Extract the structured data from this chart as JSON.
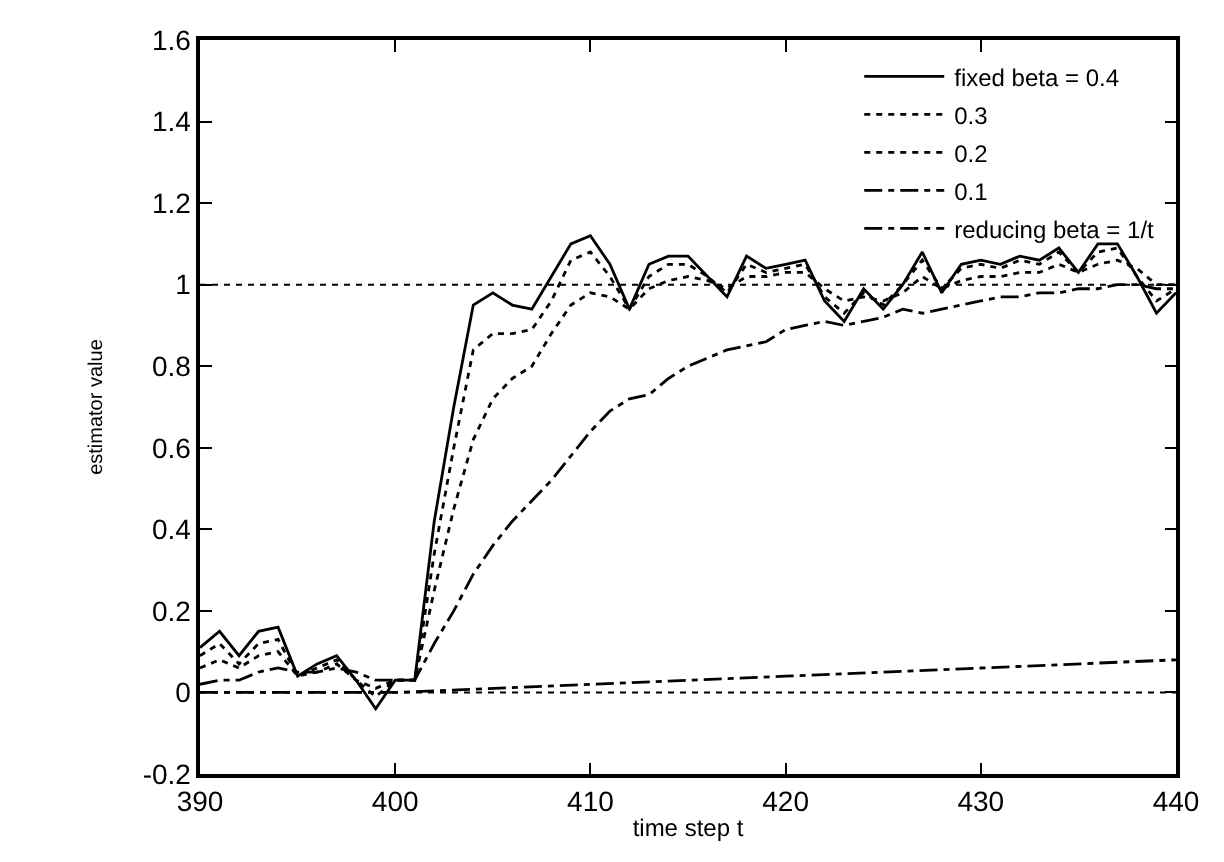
{
  "chart_data": {
    "type": "line",
    "xlabel": "time step t",
    "ylabel": "estimator value",
    "x": [
      390,
      391,
      392,
      393,
      394,
      395,
      396,
      397,
      398,
      399,
      400,
      401,
      402,
      403,
      404,
      405,
      406,
      407,
      408,
      409,
      410,
      411,
      412,
      413,
      414,
      415,
      416,
      417,
      418,
      419,
      420,
      421,
      422,
      423,
      424,
      425,
      426,
      427,
      428,
      429,
      430,
      431,
      432,
      433,
      434,
      435,
      436,
      437,
      438,
      439,
      440
    ],
    "series": [
      {
        "name": "fixed beta = 0.4",
        "color": "#000000",
        "line_style": "solid",
        "values": [
          0.11,
          0.15,
          0.09,
          0.15,
          0.16,
          0.04,
          0.07,
          0.09,
          0.03,
          -0.04,
          0.03,
          0.03,
          0.42,
          0.7,
          0.95,
          0.98,
          0.95,
          0.94,
          1.02,
          1.1,
          1.12,
          1.05,
          0.94,
          1.05,
          1.07,
          1.07,
          1.02,
          0.97,
          1.07,
          1.04,
          1.05,
          1.06,
          0.96,
          0.91,
          0.99,
          0.94,
          1.0,
          1.08,
          0.98,
          1.05,
          1.06,
          1.05,
          1.07,
          1.06,
          1.09,
          1.03,
          1.1,
          1.1,
          1.02,
          0.93,
          0.98
        ]
      },
      {
        "name": "0.3",
        "color": "#000000",
        "line_style": "dotted",
        "values": [
          0.09,
          0.12,
          0.07,
          0.12,
          0.13,
          0.04,
          0.06,
          0.08,
          0.03,
          -0.01,
          0.03,
          0.03,
          0.34,
          0.6,
          0.84,
          0.88,
          0.88,
          0.89,
          0.96,
          1.06,
          1.08,
          1.02,
          0.94,
          1.02,
          1.05,
          1.05,
          1.02,
          0.98,
          1.05,
          1.03,
          1.04,
          1.05,
          0.97,
          0.93,
          0.98,
          0.95,
          1.0,
          1.06,
          0.99,
          1.04,
          1.05,
          1.04,
          1.06,
          1.05,
          1.08,
          1.03,
          1.08,
          1.09,
          1.02,
          0.96,
          0.99
        ]
      },
      {
        "name": "0.2",
        "color": "#000000",
        "line_style": "dotted",
        "values": [
          0.06,
          0.08,
          0.06,
          0.09,
          0.1,
          0.04,
          0.05,
          0.07,
          0.03,
          0.01,
          0.03,
          0.03,
          0.25,
          0.45,
          0.62,
          0.72,
          0.77,
          0.8,
          0.88,
          0.95,
          0.98,
          0.97,
          0.94,
          0.99,
          1.01,
          1.02,
          1.01,
          0.99,
          1.02,
          1.02,
          1.03,
          1.03,
          0.99,
          0.96,
          0.97,
          0.96,
          0.98,
          1.02,
          0.99,
          1.01,
          1.02,
          1.02,
          1.03,
          1.03,
          1.05,
          1.03,
          1.05,
          1.06,
          1.04,
          1.0,
          1.0
        ]
      },
      {
        "name": "0.1",
        "color": "#000000",
        "line_style": "dashed",
        "values": [
          0.02,
          0.03,
          0.03,
          0.05,
          0.06,
          0.05,
          0.05,
          0.06,
          0.05,
          0.03,
          0.03,
          0.03,
          0.12,
          0.2,
          0.29,
          0.36,
          0.42,
          0.47,
          0.52,
          0.58,
          0.64,
          0.69,
          0.72,
          0.73,
          0.77,
          0.8,
          0.82,
          0.84,
          0.85,
          0.86,
          0.89,
          0.9,
          0.91,
          0.9,
          0.91,
          0.92,
          0.94,
          0.93,
          0.94,
          0.95,
          0.96,
          0.97,
          0.97,
          0.98,
          0.98,
          0.99,
          0.99,
          1.0,
          1.0,
          0.99,
          0.99
        ]
      },
      {
        "name": "reducing beta = 1/t",
        "color": "#000000",
        "line_style": "dashed",
        "x": [
          390,
          400,
          410,
          420,
          430,
          440
        ],
        "values": [
          0.0,
          0.0,
          0.02,
          0.04,
          0.06,
          0.08
        ]
      }
    ],
    "ref_lines": [
      {
        "axis": "y",
        "value": 1,
        "color": "#000000",
        "line_style": "dotted"
      },
      {
        "axis": "y",
        "value": 0,
        "color": "#000000",
        "line_style": "dotted"
      }
    ],
    "xlim": [
      390,
      440
    ],
    "xticks": [
      390,
      400,
      410,
      420,
      430,
      440
    ],
    "ylim": [
      -0.2,
      1.6
    ],
    "yticks": [
      -0.2,
      0,
      0.2,
      0.4,
      0.6,
      0.8,
      1,
      1.2,
      1.4,
      1.6
    ],
    "grid": false,
    "legend": "top right",
    "marker": "none"
  }
}
